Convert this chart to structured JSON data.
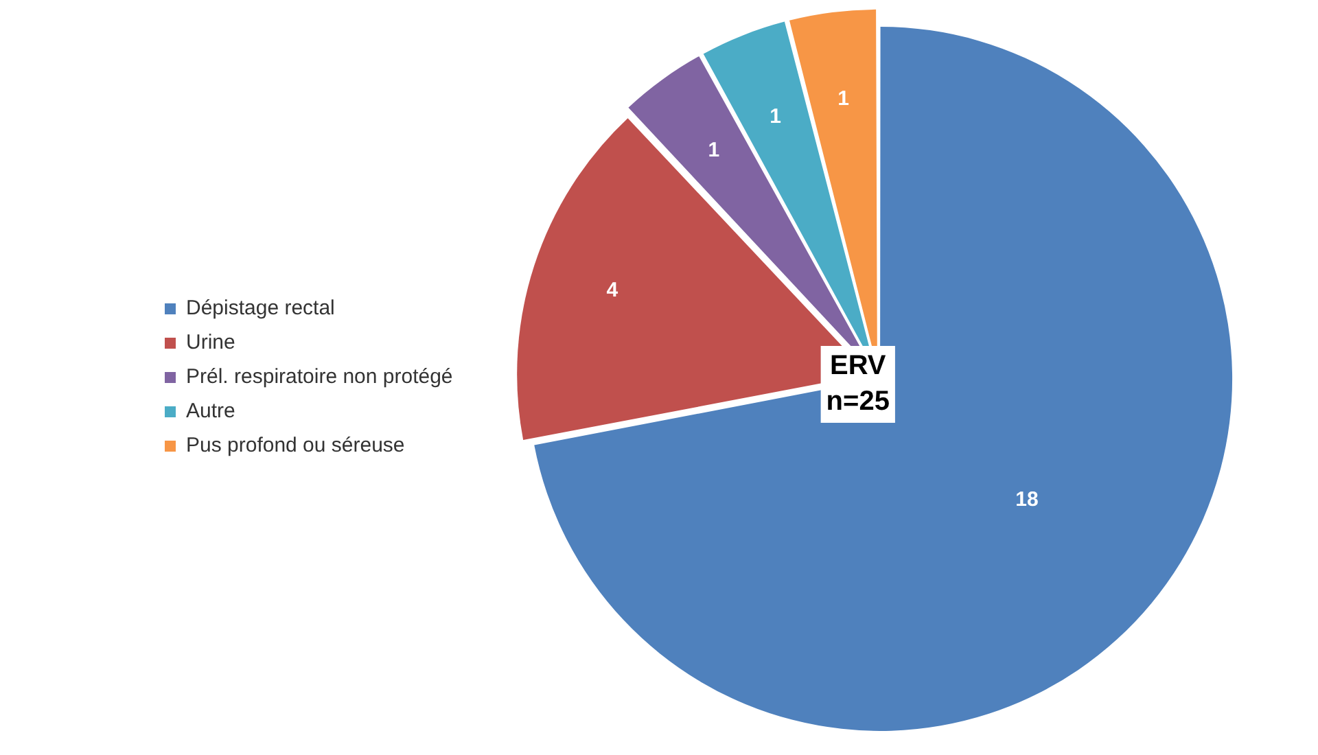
{
  "chart_data": {
    "type": "pie",
    "categories": [
      "Dépistage rectal",
      "Urine",
      "Prél. respiratoire non protégé",
      "Autre",
      "Pus profond ou séreuse"
    ],
    "values": [
      18,
      4,
      1,
      1,
      1
    ],
    "colors": [
      "#4f81bd",
      "#c0504d",
      "#8064a2",
      "#4bacc6",
      "#f79646"
    ],
    "data_labels": true,
    "legend": "left",
    "annotations": [
      "ERV\nn=25"
    ]
  }
}
